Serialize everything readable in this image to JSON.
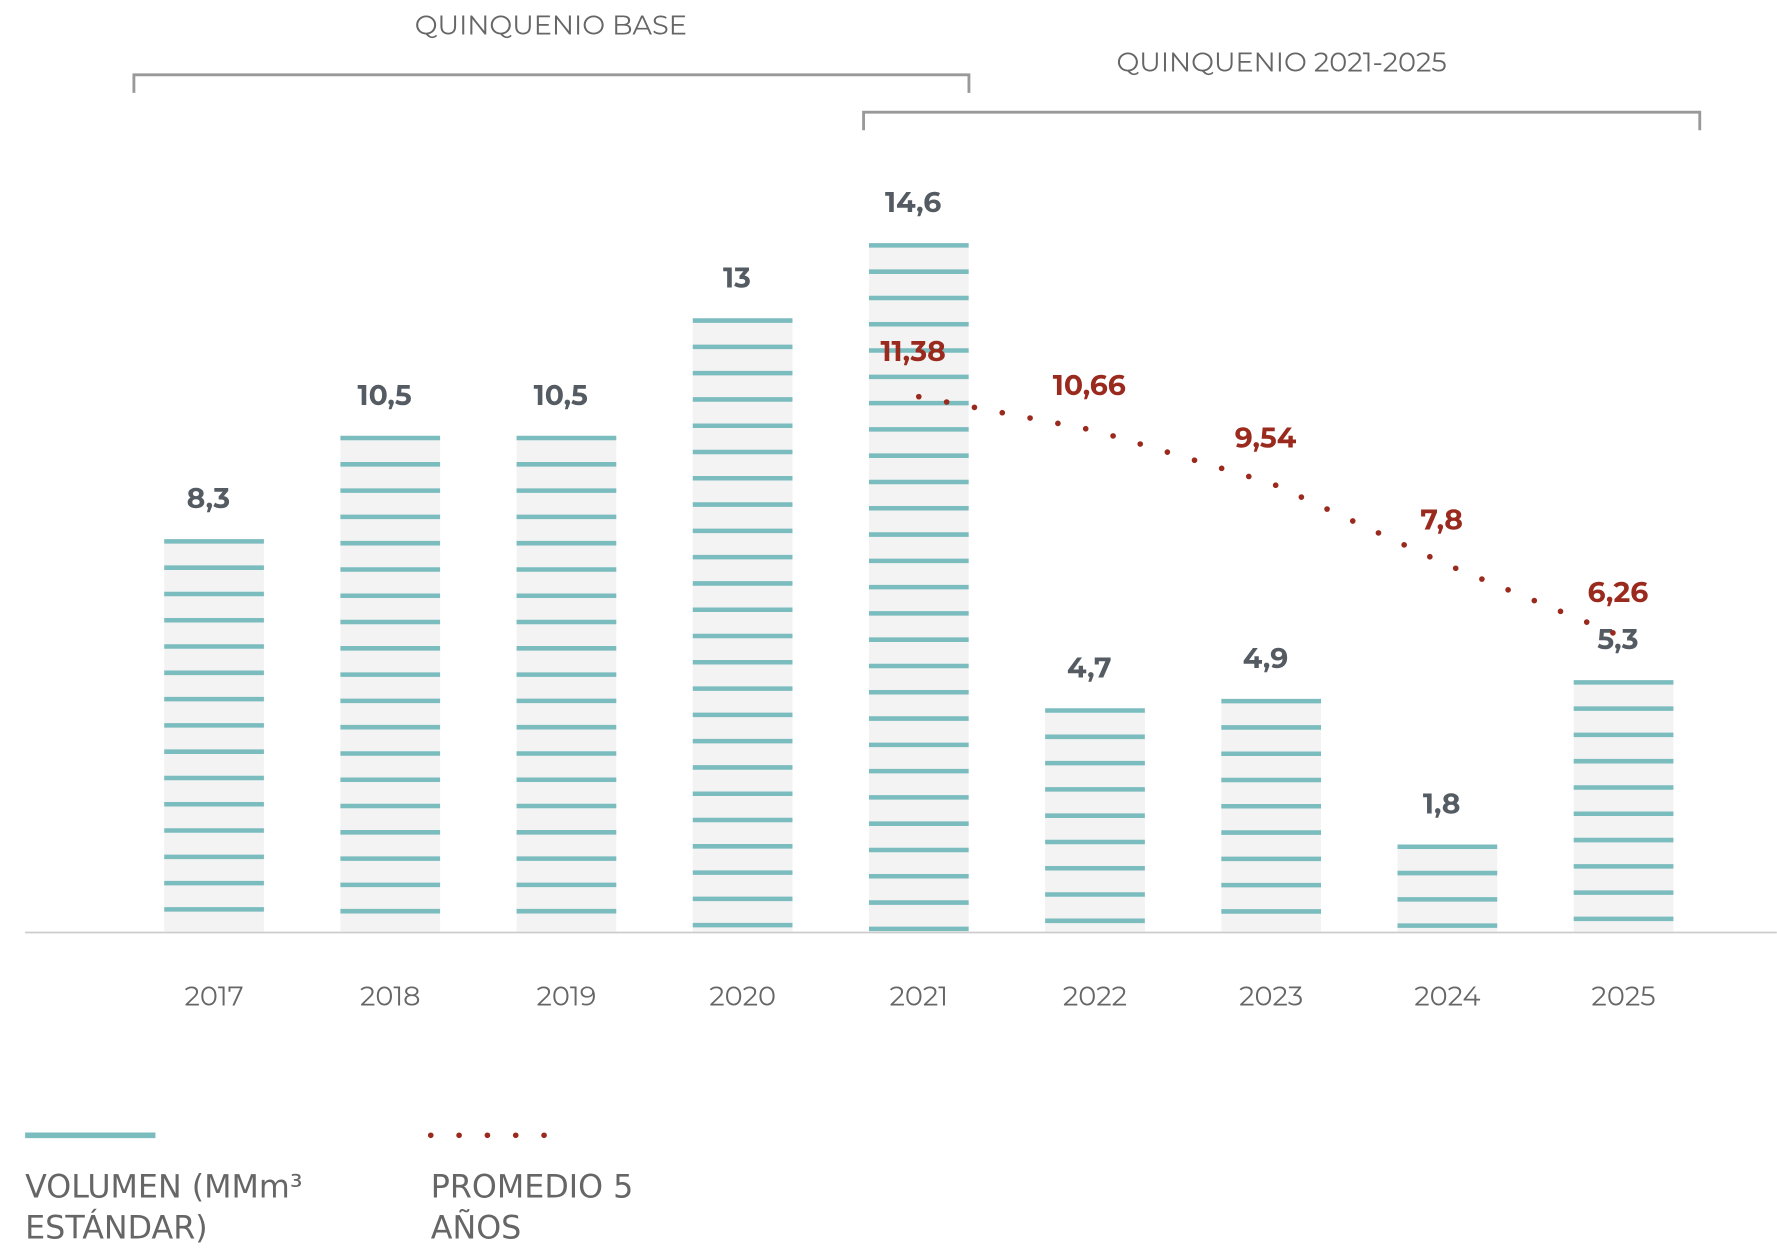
{
  "chart_data": {
    "type": "bar",
    "annotations": [
      "QUINQUENIO BASE",
      "QUINQUENIO 2021-2025"
    ],
    "categories": [
      "2017",
      "2018",
      "2019",
      "2020",
      "2021",
      "2022",
      "2023",
      "2024",
      "2025"
    ],
    "ylim": [
      0,
      15
    ],
    "series": [
      {
        "name": "VOLUMEN (MMm³ ESTÁNDAR)",
        "type": "bar",
        "color": "#7bbcbf",
        "values": [
          8.3,
          10.5,
          10.5,
          13,
          14.6,
          4.7,
          4.9,
          1.8,
          5.3
        ],
        "value_labels": [
          "8,3",
          "10,5",
          "10,5",
          "13",
          "14,6",
          "4,7",
          "4,9",
          "1,8",
          "5,3"
        ]
      },
      {
        "name": "PROMEDIO 5 AÑOS",
        "type": "line",
        "color": "#9b2a1e",
        "values": [
          null,
          null,
          null,
          null,
          11.38,
          10.66,
          9.54,
          7.8,
          6.26
        ],
        "value_labels": [
          null,
          null,
          null,
          null,
          "11,38",
          "10,66",
          "9,54",
          "7,8",
          "6,26"
        ]
      }
    ]
  }
}
